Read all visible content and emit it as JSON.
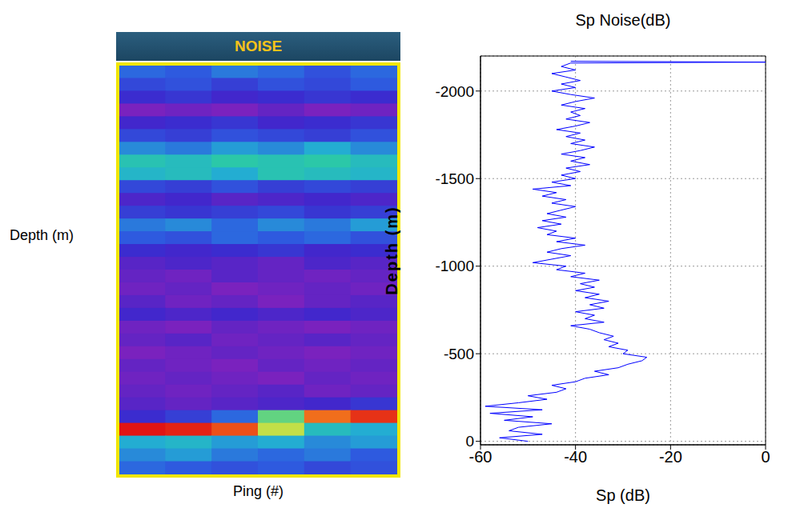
{
  "chart_data": [
    {
      "type": "heatmap",
      "title": "NOISE",
      "xlabel": "Ping (#)",
      "ylabel": "Depth (m)",
      "tick_labels": false,
      "cells": [
        [
          -40,
          -41,
          -39,
          -40,
          -42,
          -40
        ],
        [
          -43,
          -42,
          -44,
          -42,
          -43,
          -41
        ],
        [
          -46,
          -45,
          -47,
          -46,
          -45,
          -46
        ],
        [
          -52,
          -51,
          -52,
          -50,
          -52,
          -51
        ],
        [
          -47,
          -46,
          -45,
          -47,
          -46,
          -45
        ],
        [
          -43,
          -44,
          -42,
          -43,
          -44,
          -42
        ],
        [
          -38,
          -39,
          -37,
          -38,
          -36,
          -38
        ],
        [
          -33,
          -34,
          -32,
          -33,
          -32,
          -34
        ],
        [
          -35,
          -34,
          -36,
          -33,
          -34,
          -35
        ],
        [
          -43,
          -44,
          -42,
          -44,
          -43,
          -44
        ],
        [
          -48,
          -47,
          -49,
          -48,
          -47,
          -48
        ],
        [
          -44,
          -45,
          -44,
          -43,
          -45,
          -44
        ],
        [
          -39,
          -38,
          -40,
          -38,
          -39,
          -37
        ],
        [
          -41,
          -42,
          -40,
          -41,
          -40,
          -42
        ],
        [
          -46,
          -47,
          -46,
          -45,
          -47,
          -46
        ],
        [
          -49,
          -48,
          -49,
          -50,
          -48,
          -49
        ],
        [
          -50,
          -51,
          -49,
          -50,
          -51,
          -50
        ],
        [
          -51,
          -50,
          -52,
          -51,
          -50,
          -51
        ],
        [
          -49,
          -51,
          -50,
          -52,
          -50,
          -49
        ],
        [
          -47,
          -48,
          -47,
          -48,
          -47,
          -48
        ],
        [
          -51,
          -52,
          -50,
          -51,
          -52,
          -51
        ],
        [
          -50,
          -49,
          -51,
          -50,
          -49,
          -50
        ],
        [
          -52,
          -51,
          -50,
          -51,
          -52,
          -51
        ],
        [
          -50,
          -51,
          -52,
          -50,
          -51,
          -50
        ],
        [
          -51,
          -50,
          -51,
          -52,
          -50,
          -51
        ],
        [
          -50,
          -51,
          -50,
          -49,
          -51,
          -50
        ],
        [
          -49,
          -50,
          -49,
          -48,
          -47,
          -45
        ],
        [
          -46,
          -44,
          -40,
          -28,
          -12,
          -8
        ],
        [
          -6,
          -7,
          -10,
          -22,
          -34,
          -36
        ],
        [
          -36,
          -35,
          -37,
          -36,
          -38,
          -37
        ],
        [
          -38,
          -37,
          -39,
          -40,
          -39,
          -41
        ],
        [
          -40,
          -41,
          -42,
          -41,
          -43,
          -42
        ]
      ]
    },
    {
      "type": "line",
      "title": "Sp Noise(dB)",
      "xlabel": "Sp (dB)",
      "ylabel": "Depth (m)",
      "color": "#0000ff",
      "grid": true,
      "xlim": [
        -60,
        0
      ],
      "xticks": [
        -60,
        -40,
        -20,
        0
      ],
      "ylim": [
        -2200,
        20
      ],
      "yticks": [
        -2000,
        -1500,
        -1000,
        -500,
        0
      ],
      "y": [
        0,
        -20,
        -40,
        -60,
        -80,
        -100,
        -120,
        -140,
        -160,
        -180,
        -200,
        -220,
        -240,
        -260,
        -280,
        -300,
        -320,
        -340,
        -360,
        -380,
        -400,
        -420,
        -440,
        -460,
        -480,
        -500,
        -520,
        -540,
        -560,
        -580,
        -600,
        -620,
        -640,
        -660,
        -680,
        -700,
        -720,
        -740,
        -760,
        -780,
        -800,
        -820,
        -840,
        -860,
        -880,
        -900,
        -920,
        -940,
        -960,
        -980,
        -1000,
        -1020,
        -1040,
        -1060,
        -1080,
        -1100,
        -1120,
        -1140,
        -1160,
        -1180,
        -1200,
        -1220,
        -1240,
        -1260,
        -1280,
        -1300,
        -1320,
        -1340,
        -1360,
        -1380,
        -1400,
        -1420,
        -1440,
        -1460,
        -1480,
        -1500,
        -1520,
        -1540,
        -1560,
        -1580,
        -1600,
        -1620,
        -1640,
        -1660,
        -1680,
        -1700,
        -1720,
        -1740,
        -1760,
        -1780,
        -1800,
        -1820,
        -1840,
        -1860,
        -1880,
        -1900,
        -1920,
        -1940,
        -1960,
        -1980,
        -2000,
        -2020,
        -2040,
        -2060,
        -2080,
        -2100,
        -2120,
        -2140,
        -2160,
        -2165,
        -2170
      ],
      "x": [
        -50,
        -56,
        -47,
        -54,
        -52,
        -45,
        -55,
        -49,
        -58,
        -47,
        -59,
        -52,
        -46,
        -50,
        -44,
        -42,
        -45,
        -40,
        -38,
        -33,
        -36,
        -31,
        -29,
        -26,
        -25,
        -30,
        -29,
        -33,
        -31,
        -34,
        -32,
        -35,
        -37,
        -41,
        -34,
        -38,
        -36,
        -40,
        -34,
        -37,
        -33,
        -38,
        -35,
        -40,
        -36,
        -39,
        -35,
        -41,
        -38,
        -44,
        -42,
        -49,
        -45,
        -41,
        -46,
        -43,
        -38,
        -44,
        -40,
        -46,
        -44,
        -48,
        -43,
        -47,
        -42,
        -46,
        -43,
        -40,
        -45,
        -42,
        -47,
        -44,
        -49,
        -41,
        -45,
        -40,
        -43,
        -39,
        -42,
        -37,
        -41,
        -38,
        -43,
        -39,
        -36,
        -41,
        -38,
        -42,
        -39,
        -44,
        -40,
        -37,
        -42,
        -39,
        -41,
        -38,
        -43,
        -40,
        -36,
        -41,
        -45,
        -40,
        -43,
        -39,
        -42,
        -45,
        -40,
        -43,
        -41,
        0,
        -41
      ]
    }
  ]
}
